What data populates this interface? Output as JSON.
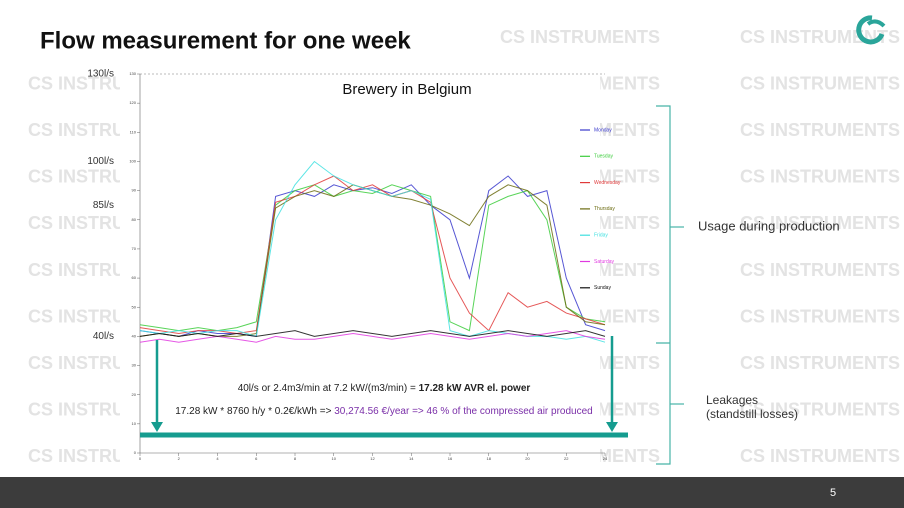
{
  "slide": {
    "title": "Flow measurement for one week",
    "watermark": "CS INSTRUMENTS",
    "page_number": "5",
    "usage_label": "Usage during production",
    "leakage_label": "Leakages",
    "leakage_sublabel": "(standstill losses)",
    "note_1_plain": "40l/s or 2.4m3/min at 7.2 kW/(m3/min) = ",
    "note_1_bold": "17.28 kW AVR el. power",
    "note_2_plain": "17.28 kW * 8760 h/y * 0.2€/kWh => ",
    "note_2_highlight": "30,274.56 €/year => 46 % of the compressed air produced"
  },
  "chart_data": {
    "type": "line",
    "title": "Brewery in Belgium",
    "x": [
      0,
      1,
      2,
      3,
      4,
      5,
      6,
      7,
      8,
      9,
      10,
      11,
      12,
      13,
      14,
      15,
      16,
      17,
      18,
      19,
      20,
      21,
      22,
      23,
      24
    ],
    "xlim": [
      0,
      24
    ],
    "xticks": [
      0,
      2,
      4,
      6,
      8,
      10,
      12,
      14,
      16,
      18,
      20,
      22,
      24
    ],
    "ylim": [
      0,
      130
    ],
    "yticks": [
      0,
      10,
      20,
      30,
      40,
      50,
      60,
      70,
      80,
      90,
      100,
      110,
      120,
      130
    ],
    "legend": "upper right",
    "level_labels": [
      {
        "value": 130,
        "label": "130l/s"
      },
      {
        "value": 100,
        "label": "100l/s"
      },
      {
        "value": 85,
        "label": "85l/s"
      },
      {
        "value": 40,
        "label": "40l/s"
      }
    ],
    "series": [
      {
        "name": "Monday",
        "color": "#3a3acc",
        "values": [
          42,
          41,
          40,
          42,
          41,
          41,
          40,
          88,
          90,
          88,
          92,
          90,
          91,
          89,
          92,
          85,
          80,
          60,
          90,
          95,
          88,
          90,
          60,
          44,
          42
        ]
      },
      {
        "name": "Tuesday",
        "color": "#3ccc3c",
        "values": [
          44,
          43,
          42,
          43,
          42,
          43,
          45,
          85,
          90,
          92,
          88,
          90,
          89,
          92,
          90,
          88,
          45,
          42,
          85,
          88,
          90,
          80,
          50,
          46,
          45
        ]
      },
      {
        "name": "Wednesday",
        "color": "#e03a3a",
        "values": [
          43,
          42,
          41,
          42,
          42,
          41,
          42,
          86,
          88,
          92,
          95,
          90,
          92,
          88,
          90,
          86,
          60,
          48,
          42,
          55,
          50,
          52,
          48,
          46,
          44
        ]
      },
      {
        "name": "Thursday",
        "color": "#6b6b10",
        "values": [
          40,
          41,
          40,
          41,
          40,
          40,
          41,
          84,
          88,
          90,
          88,
          92,
          90,
          88,
          87,
          85,
          82,
          78,
          88,
          92,
          90,
          85,
          50,
          45,
          44
        ]
      },
      {
        "name": "Friday",
        "color": "#3fe0e0",
        "values": [
          42,
          41,
          42,
          41,
          42,
          42,
          40,
          80,
          92,
          100,
          95,
          92,
          90,
          88,
          90,
          87,
          42,
          40,
          42,
          41,
          40,
          40,
          39,
          40,
          38
        ]
      },
      {
        "name": "Saturday",
        "color": "#e03ae0",
        "values": [
          38,
          39,
          38,
          39,
          40,
          39,
          38,
          40,
          39,
          39,
          40,
          41,
          40,
          39,
          40,
          41,
          40,
          39,
          40,
          41,
          40,
          41,
          42,
          40,
          39
        ]
      },
      {
        "name": "Sunday",
        "color": "#111111",
        "values": [
          40,
          41,
          40,
          41,
          40,
          41,
          40,
          41,
          42,
          40,
          41,
          42,
          41,
          40,
          41,
          42,
          41,
          40,
          41,
          42,
          41,
          40,
          41,
          42,
          40
        ]
      }
    ]
  }
}
